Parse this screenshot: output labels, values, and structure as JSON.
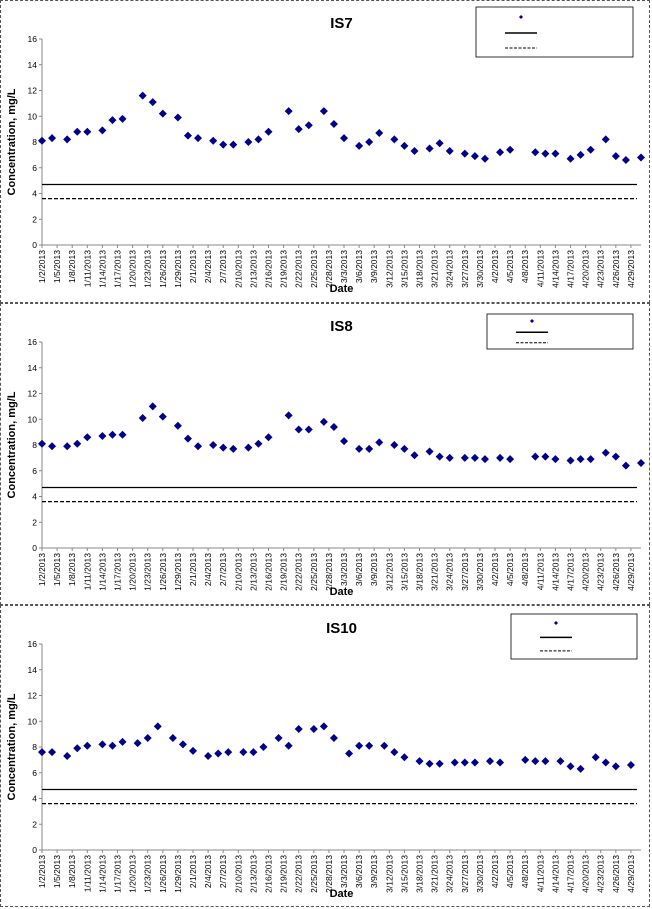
{
  "colors": {
    "marker": "#00008B",
    "line": "#000000",
    "axis": "#888888"
  },
  "chart_data": [
    {
      "type": "scatter",
      "title": "IS7",
      "xlabel": "Date",
      "ylabel": "Concentration, mg/L",
      "ylim": [
        0,
        16
      ],
      "yticks": [
        "0",
        "2",
        "4",
        "6",
        "8",
        "10",
        "12",
        "14",
        "16"
      ],
      "xticks": [
        "1/2/2013",
        "1/5/2013",
        "1/8/2013",
        "1/11/2013",
        "1/14/2013",
        "1/17/2013",
        "1/20/2013",
        "1/23/2013",
        "1/26/2013",
        "1/29/2013",
        "2/1/2013",
        "2/4/2013",
        "2/7/2013",
        "2/10/2013",
        "2/13/2013",
        "2/16/2013",
        "2/19/2013",
        "2/22/2013",
        "2/25/2013",
        "2/28/2013",
        "3/3/2013",
        "3/6/2013",
        "3/9/2013",
        "3/12/2013",
        "3/15/2013",
        "3/18/2013",
        "3/21/2013",
        "3/24/2013",
        "3/27/2013",
        "3/30/2013",
        "4/2/2013",
        "4/5/2013",
        "4/8/2013",
        "4/11/2013",
        "4/14/2013",
        "4/17/2013",
        "4/20/2013",
        "4/23/2013",
        "4/26/2013",
        "4/29/2013"
      ],
      "legend": "top-right",
      "series": [
        {
          "x": [
            "1/2/2013",
            "1/4/2013",
            "1/7/2013",
            "1/9/2013",
            "1/11/2013",
            "1/14/2013",
            "1/16/2013",
            "1/18/2013",
            "1/22/2013",
            "1/24/2013",
            "1/26/2013",
            "1/29/2013",
            "1/31/2013",
            "2/2/2013",
            "2/5/2013",
            "2/7/2013",
            "2/9/2013",
            "2/12/2013",
            "2/14/2013",
            "2/16/2013",
            "2/20/2013",
            "2/22/2013",
            "2/24/2013",
            "2/27/2013",
            "3/1/2013",
            "3/3/2013",
            "3/6/2013",
            "3/8/2013",
            "3/10/2013",
            "3/13/2013",
            "3/15/2013",
            "3/17/2013",
            "3/20/2013",
            "3/22/2013",
            "3/24/2013",
            "3/27/2013",
            "3/29/2013",
            "3/31/2013",
            "4/3/2013",
            "4/5/2013",
            "4/10/2013",
            "4/12/2013",
            "4/14/2013",
            "4/17/2013",
            "4/19/2013",
            "4/21/2013",
            "4/24/2013",
            "4/26/2013",
            "4/28/2013",
            "5/1/2013"
          ],
          "y": [
            8.1,
            8.3,
            8.2,
            8.8,
            8.8,
            8.9,
            9.7,
            9.8,
            11.6,
            11.1,
            10.2,
            9.9,
            8.5,
            8.3,
            8.1,
            7.8,
            7.8,
            8.0,
            8.2,
            8.8,
            10.4,
            9.0,
            9.3,
            10.4,
            9.4,
            8.3,
            7.7,
            8.0,
            8.7,
            8.2,
            7.7,
            7.3,
            7.5,
            7.9,
            7.3,
            7.1,
            6.9,
            6.7,
            7.2,
            7.4,
            7.2,
            7.1,
            7.1,
            6.7,
            7.0,
            7.4,
            8.2,
            6.9,
            6.6,
            6.8
          ]
        },
        {
          "y_constant": 4.7
        },
        {
          "y_constant": 3.6
        }
      ]
    },
    {
      "type": "scatter",
      "title": "IS8",
      "xlabel": "Date",
      "ylabel": "Concentration, mg/L",
      "ylim": [
        0,
        16
      ],
      "yticks": [
        "0",
        "2",
        "4",
        "6",
        "8",
        "10",
        "12",
        "14",
        "16"
      ],
      "xticks": [
        "1/2/2013",
        "1/5/2013",
        "1/8/2013",
        "1/11/2013",
        "1/14/2013",
        "1/17/2013",
        "1/20/2013",
        "1/23/2013",
        "1/26/2013",
        "1/29/2013",
        "2/1/2013",
        "2/4/2013",
        "2/7/2013",
        "2/10/2013",
        "2/13/2013",
        "2/16/2013",
        "2/19/2013",
        "2/22/2013",
        "2/25/2013",
        "2/28/2013",
        "3/3/2013",
        "3/6/2013",
        "3/9/2013",
        "3/12/2013",
        "3/15/2013",
        "3/18/2013",
        "3/21/2013",
        "3/24/2013",
        "3/27/2013",
        "3/30/2013",
        "4/2/2013",
        "4/5/2013",
        "4/8/2013",
        "4/11/2013",
        "4/14/2013",
        "4/17/2013",
        "4/20/2013",
        "4/23/2013",
        "4/26/2013",
        "4/29/2013"
      ],
      "legend": "top-right",
      "series": [
        {
          "x": [
            "1/2/2013",
            "1/4/2013",
            "1/7/2013",
            "1/9/2013",
            "1/11/2013",
            "1/14/2013",
            "1/16/2013",
            "1/18/2013",
            "1/22/2013",
            "1/24/2013",
            "1/26/2013",
            "1/29/2013",
            "1/31/2013",
            "2/2/2013",
            "2/5/2013",
            "2/7/2013",
            "2/9/2013",
            "2/12/2013",
            "2/14/2013",
            "2/16/2013",
            "2/20/2013",
            "2/22/2013",
            "2/24/2013",
            "2/27/2013",
            "3/1/2013",
            "3/3/2013",
            "3/6/2013",
            "3/8/2013",
            "3/10/2013",
            "3/13/2013",
            "3/15/2013",
            "3/17/2013",
            "3/20/2013",
            "3/22/2013",
            "3/24/2013",
            "3/27/2013",
            "3/29/2013",
            "3/31/2013",
            "4/3/2013",
            "4/5/2013",
            "4/10/2013",
            "4/12/2013",
            "4/14/2013",
            "4/17/2013",
            "4/19/2013",
            "4/21/2013",
            "4/24/2013",
            "4/26/2013",
            "4/28/2013",
            "5/1/2013"
          ],
          "y": [
            8.1,
            7.9,
            7.9,
            8.1,
            8.6,
            8.7,
            8.8,
            8.8,
            10.1,
            11.0,
            10.2,
            9.5,
            8.5,
            7.9,
            8.0,
            7.8,
            7.7,
            7.8,
            8.1,
            8.6,
            10.3,
            9.2,
            9.2,
            9.8,
            9.4,
            8.3,
            7.7,
            7.7,
            8.2,
            8.0,
            7.7,
            7.2,
            7.5,
            7.1,
            7.0,
            7.0,
            7.0,
            6.9,
            7.0,
            6.9,
            7.1,
            7.1,
            6.9,
            6.8,
            6.9,
            6.9,
            7.4,
            7.1,
            6.4,
            6.6
          ]
        },
        {
          "y_constant": 4.7
        },
        {
          "y_constant": 3.6
        }
      ]
    },
    {
      "type": "scatter",
      "title": "IS10",
      "xlabel": "Date",
      "ylabel": "Concentration, mg/L",
      "ylim": [
        0,
        16
      ],
      "yticks": [
        "0",
        "2",
        "4",
        "6",
        "8",
        "10",
        "12",
        "14",
        "16"
      ],
      "xticks": [
        "1/2/2013",
        "1/5/2013",
        "1/8/2013",
        "1/11/2013",
        "1/14/2013",
        "1/17/2013",
        "1/20/2013",
        "1/23/2013",
        "1/26/2013",
        "1/29/2013",
        "2/1/2013",
        "2/4/2013",
        "2/7/2013",
        "2/10/2013",
        "2/13/2013",
        "2/16/2013",
        "2/19/2013",
        "2/22/2013",
        "2/25/2013",
        "2/28/2013",
        "3/3/2013",
        "3/6/2013",
        "3/9/2013",
        "3/12/2013",
        "3/15/2013",
        "3/18/2013",
        "3/21/2013",
        "3/24/2013",
        "3/27/2013",
        "3/30/2013",
        "4/2/2013",
        "4/5/2013",
        "4/8/2013",
        "4/11/2013",
        "4/14/2013",
        "4/17/2013",
        "4/20/2013",
        "4/23/2013",
        "4/26/2013",
        "4/29/2013"
      ],
      "legend": "top-right",
      "series": [
        {
          "x": [
            "1/2/2013",
            "1/4/2013",
            "1/7/2013",
            "1/9/2013",
            "1/11/2013",
            "1/14/2013",
            "1/16/2013",
            "1/18/2013",
            "1/21/2013",
            "1/23/2013",
            "1/25/2013",
            "1/28/2013",
            "1/30/2013",
            "2/1/2013",
            "2/4/2013",
            "2/6/2013",
            "2/8/2013",
            "2/11/2013",
            "2/13/2013",
            "2/15/2013",
            "2/18/2013",
            "2/20/2013",
            "2/22/2013",
            "2/25/2013",
            "2/27/2013",
            "3/1/2013",
            "3/4/2013",
            "3/6/2013",
            "3/8/2013",
            "3/11/2013",
            "3/13/2013",
            "3/15/2013",
            "3/18/2013",
            "3/20/2013",
            "3/22/2013",
            "3/25/2013",
            "3/27/2013",
            "3/29/2013",
            "4/1/2013",
            "4/3/2013",
            "4/8/2013",
            "4/10/2013",
            "4/12/2013",
            "4/15/2013",
            "4/17/2013",
            "4/19/2013",
            "4/22/2013",
            "4/24/2013",
            "4/26/2013",
            "4/29/2013"
          ],
          "y": [
            7.6,
            7.6,
            7.3,
            7.9,
            8.1,
            8.2,
            8.1,
            8.4,
            8.3,
            8.7,
            9.6,
            8.7,
            8.2,
            7.7,
            7.3,
            7.5,
            7.6,
            7.6,
            7.6,
            8.0,
            8.7,
            8.1,
            9.4,
            9.4,
            9.6,
            8.7,
            7.5,
            8.1,
            8.1,
            8.1,
            7.6,
            7.2,
            6.9,
            6.7,
            6.7,
            6.8,
            6.8,
            6.8,
            6.9,
            6.8,
            7.0,
            6.9,
            6.9,
            6.9,
            6.5,
            6.3,
            7.2,
            6.8,
            6.5,
            6.6
          ]
        },
        {
          "y_constant": 4.7
        },
        {
          "y_constant": 3.6
        }
      ]
    }
  ]
}
